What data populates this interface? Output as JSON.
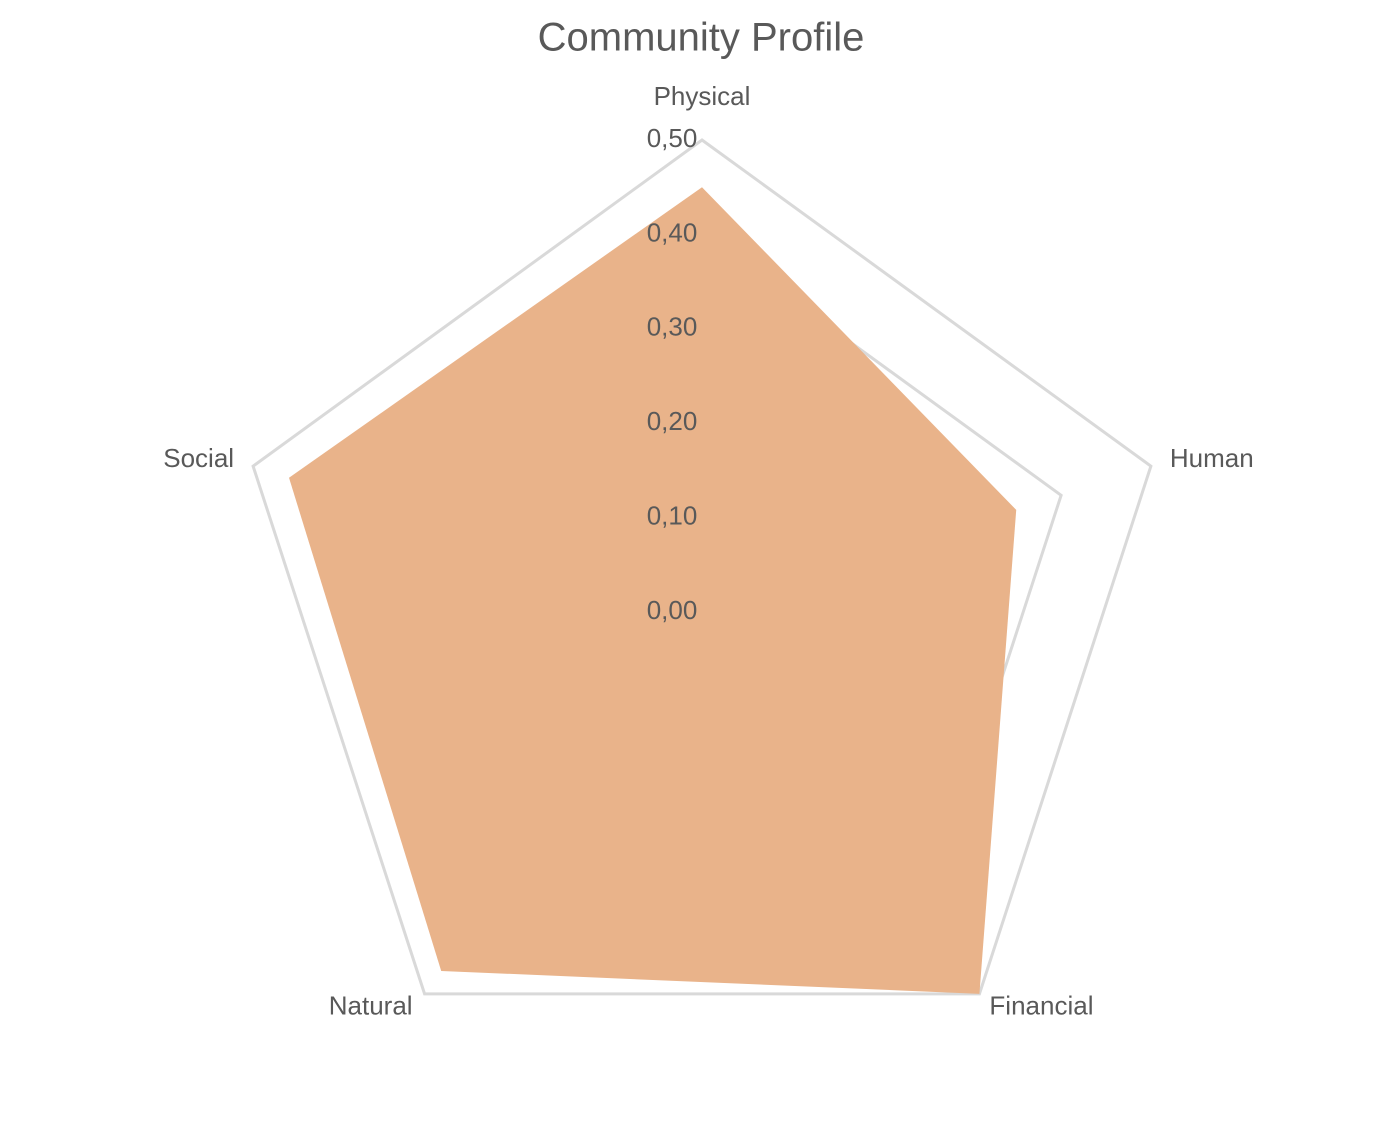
{
  "chart_data": {
    "type": "radar",
    "title": "Community Profile",
    "categories": [
      "Physical",
      "Human",
      "Financial",
      "Natural",
      "Social"
    ],
    "values": [
      0.45,
      0.35,
      0.5,
      0.47,
      0.46
    ],
    "color": "#e9b38a",
    "rlim": [
      0,
      0.5
    ],
    "rticks": [
      {
        "value": 0,
        "label": "0,00"
      },
      {
        "value": 0.1,
        "label": "0,10"
      },
      {
        "value": 0.2,
        "label": "0,20"
      },
      {
        "value": 0.3,
        "label": "0,30"
      },
      {
        "value": 0.4,
        "label": "0,40"
      },
      {
        "value": 0.5,
        "label": "0,50"
      }
    ],
    "grid": true
  }
}
